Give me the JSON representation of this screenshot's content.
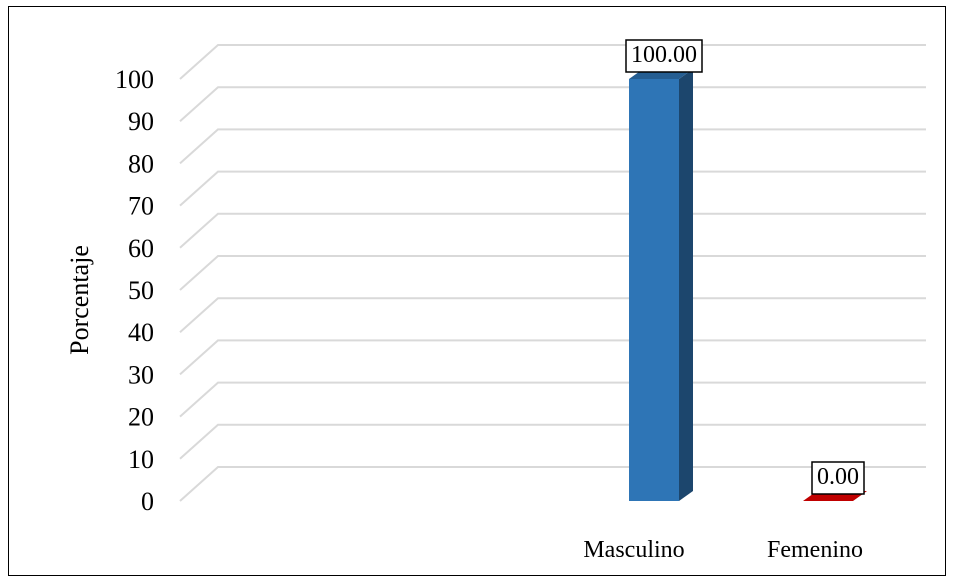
{
  "chart_data": {
    "type": "bar",
    "categories": [
      "Masculino",
      "Femenino"
    ],
    "values": [
      100.0,
      0.0
    ],
    "data_labels": [
      "100.00",
      "0.00"
    ],
    "ylabel": "Porcentaje",
    "xlabel": "",
    "title": "",
    "ylim": [
      0,
      100
    ],
    "yticks": [
      "0",
      "10",
      "20",
      "30",
      "40",
      "50",
      "60",
      "70",
      "80",
      "90",
      "100"
    ],
    "grid": true,
    "legend": "none",
    "bar_colors": [
      "#2e75b6",
      "#c00000"
    ]
  }
}
